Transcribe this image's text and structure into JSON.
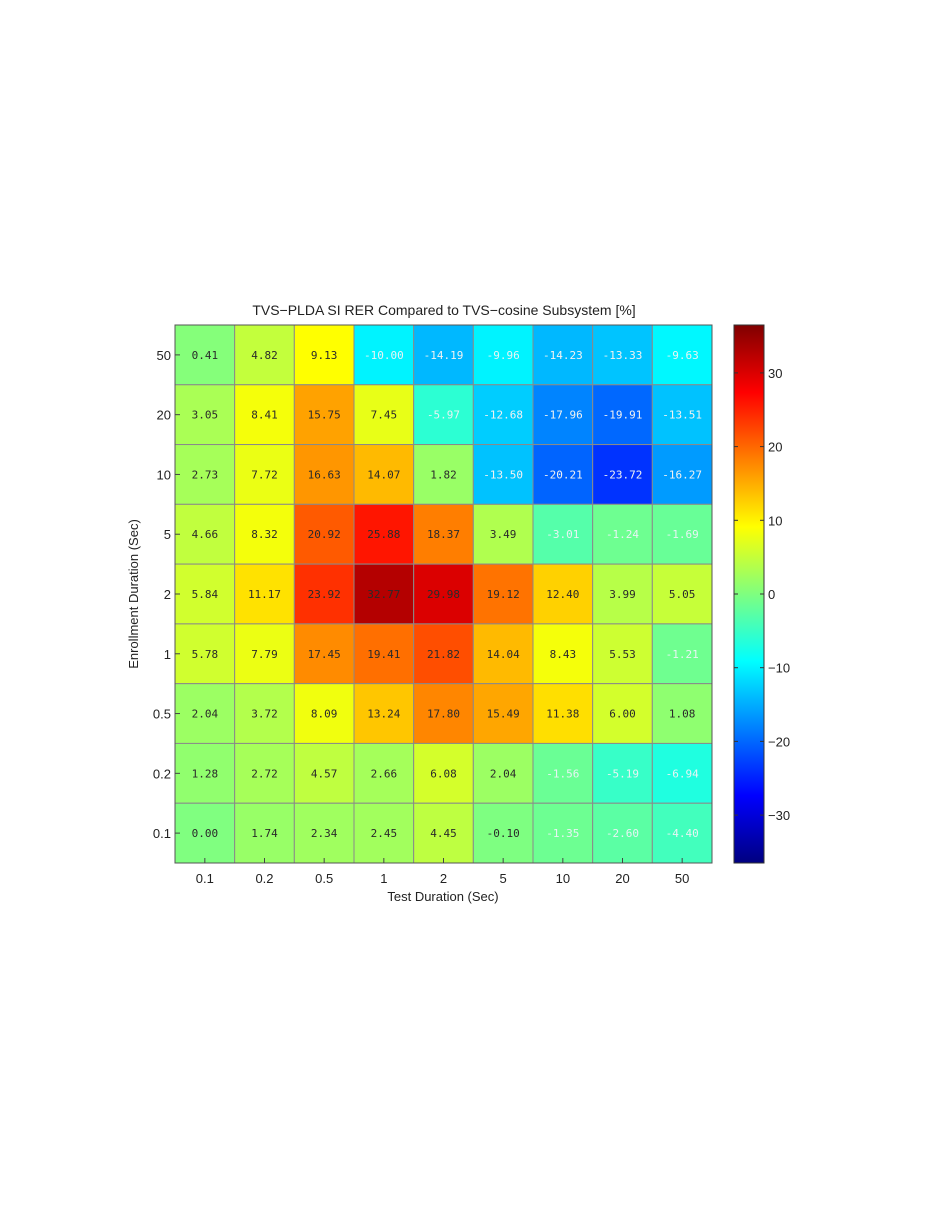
{
  "chart_data": {
    "type": "heatmap",
    "title": "TVS−PLDA SI RER Compared to TVS−cosine Subsystem [%]",
    "xlabel": "Test Duration (Sec)",
    "ylabel": "Enrollment Duration (Sec)",
    "x_categories": [
      "0.1",
      "0.2",
      "0.5",
      "1",
      "2",
      "5",
      "10",
      "20",
      "50"
    ],
    "y_categories": [
      "50",
      "20",
      "10",
      "5",
      "2",
      "1",
      "0.5",
      "0.2",
      "0.1"
    ],
    "values": [
      [
        0.41,
        4.82,
        9.13,
        -10.0,
        -14.19,
        -9.96,
        -14.23,
        -13.33,
        -9.63
      ],
      [
        3.05,
        8.41,
        15.75,
        7.45,
        -5.97,
        -12.68,
        -17.96,
        -19.91,
        -13.51
      ],
      [
        2.73,
        7.72,
        16.63,
        14.07,
        1.82,
        -13.5,
        -20.21,
        -23.72,
        -16.27
      ],
      [
        4.66,
        8.32,
        20.92,
        25.88,
        18.37,
        3.49,
        -3.01,
        -1.24,
        -1.69
      ],
      [
        5.84,
        11.17,
        23.92,
        32.77,
        29.98,
        19.12,
        12.4,
        3.99,
        5.05
      ],
      [
        5.78,
        7.79,
        17.45,
        19.41,
        21.82,
        14.04,
        8.43,
        5.53,
        -1.21
      ],
      [
        2.04,
        3.72,
        8.09,
        13.24,
        17.8,
        15.49,
        11.38,
        6.0,
        1.08
      ],
      [
        1.28,
        2.72,
        4.57,
        2.66,
        6.08,
        2.04,
        -1.56,
        -5.19,
        -6.94
      ],
      [
        0.0,
        1.74,
        2.34,
        2.45,
        4.45,
        -0.1,
        -1.35,
        -2.6,
        -4.4
      ]
    ],
    "labels": [
      [
        "0.41",
        "4.82",
        "9.13",
        "-10.00",
        "-14.19",
        "-9.96",
        "-14.23",
        "-13.33",
        "-9.63"
      ],
      [
        "3.05",
        "8.41",
        "15.75",
        "7.45",
        "-5.97",
        "-12.68",
        "-17.96",
        "-19.91",
        "-13.51"
      ],
      [
        "2.73",
        "7.72",
        "16.63",
        "14.07",
        "1.82",
        "-13.50",
        "-20.21",
        "-23.72",
        "-16.27"
      ],
      [
        "4.66",
        "8.32",
        "20.92",
        "25.88",
        "18.37",
        "3.49",
        "-3.01",
        "-1.24",
        "-1.69"
      ],
      [
        "5.84",
        "11.17",
        "23.92",
        "32.77",
        "29.98",
        "19.12",
        "12.40",
        "3.99",
        "5.05"
      ],
      [
        "5.78",
        "7.79",
        "17.45",
        "19.41",
        "21.82",
        "14.04",
        "8.43",
        "5.53",
        "-1.21"
      ],
      [
        "2.04",
        "3.72",
        "8.09",
        "13.24",
        "17.80",
        "15.49",
        "11.38",
        "6.00",
        "1.08"
      ],
      [
        "1.28",
        "2.72",
        "4.57",
        "2.66",
        "6.08",
        "2.04",
        "-1.56",
        "-5.19",
        "-6.94"
      ],
      [
        "0.00",
        "1.74",
        "2.34",
        "2.45",
        "4.45",
        "-0.10",
        "-1.35",
        "-2.60",
        "-4.40"
      ]
    ],
    "colorbar": {
      "range": [
        -36.5,
        36.5
      ],
      "ticks": [
        30,
        20,
        10,
        0,
        -10,
        -20,
        -30
      ],
      "tick_labels": [
        "30",
        "20",
        "10",
        "0",
        "−10",
        "−20",
        "−30"
      ],
      "colormap": "jet"
    },
    "grid": true
  }
}
